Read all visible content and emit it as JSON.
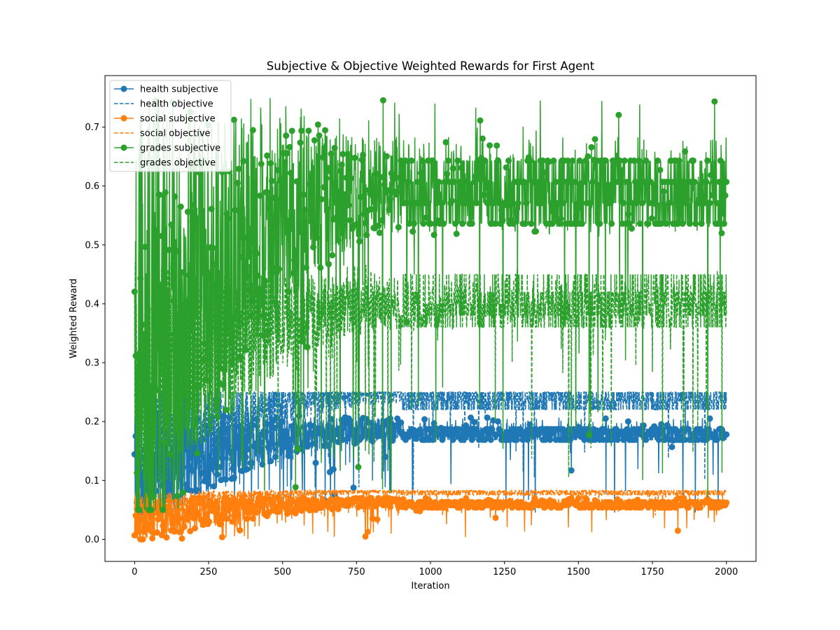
{
  "chart_data": {
    "type": "line",
    "title": "Subjective & Objective Weighted Rewards for First Agent",
    "xlabel": "Iteration",
    "ylabel": "Weighted Reward",
    "xlim": [
      -100,
      2100
    ],
    "ylim": [
      -0.0375,
      0.7875
    ],
    "xticks": [
      0,
      250,
      500,
      750,
      1000,
      1250,
      1500,
      1750,
      2000
    ],
    "xtick_labels": [
      "0",
      "250",
      "500",
      "750",
      "1000",
      "1250",
      "1500",
      "1750",
      "2000"
    ],
    "yticks": [
      0.0,
      0.1,
      0.2,
      0.3,
      0.4,
      0.5,
      0.6,
      0.7
    ],
    "ytick_labels": [
      "0.0",
      "0.1",
      "0.2",
      "0.3",
      "0.4",
      "0.5",
      "0.6",
      "0.7"
    ],
    "grid": false,
    "legend_position": "top-left",
    "x_range_iterations": [
      0,
      2000
    ],
    "series": [
      {
        "name": "health subjective",
        "color": "#1f77b4",
        "style": "solid-marker",
        "start": 0.11,
        "end": 0.187,
        "levels": [
          0.169,
          0.178,
          0.187
        ],
        "min": 0.045,
        "max": 0.21
      },
      {
        "name": "health objective",
        "color": "#1f77b4",
        "style": "dashed",
        "start": 0.15,
        "end": 0.25,
        "levels": [
          0.22,
          0.235,
          0.25
        ],
        "min": 0.08,
        "max": 0.25
      },
      {
        "name": "social subjective",
        "color": "#ff7f0e",
        "style": "solid-marker",
        "start": 0.035,
        "end": 0.063,
        "levels": [
          0.054,
          0.058,
          0.063
        ],
        "min": 0.0,
        "max": 0.07
      },
      {
        "name": "social objective",
        "color": "#ff7f0e",
        "style": "dashed",
        "start": 0.05,
        "end": 0.083,
        "levels": [
          0.075,
          0.079,
          0.083
        ],
        "min": 0.04,
        "max": 0.083
      },
      {
        "name": "grades subjective",
        "color": "#2ca02c",
        "style": "solid-marker",
        "start": 0.3,
        "end": 0.6,
        "levels": [
          0.536,
          0.571,
          0.607,
          0.643
        ],
        "min": 0.05,
        "max": 0.75
      },
      {
        "name": "grades objective",
        "color": "#2ca02c",
        "style": "dashed",
        "start": 0.25,
        "end": 0.4,
        "levels": [
          0.36,
          0.38,
          0.4,
          0.42,
          0.45
        ],
        "min": 0.1,
        "max": 0.47
      }
    ]
  }
}
